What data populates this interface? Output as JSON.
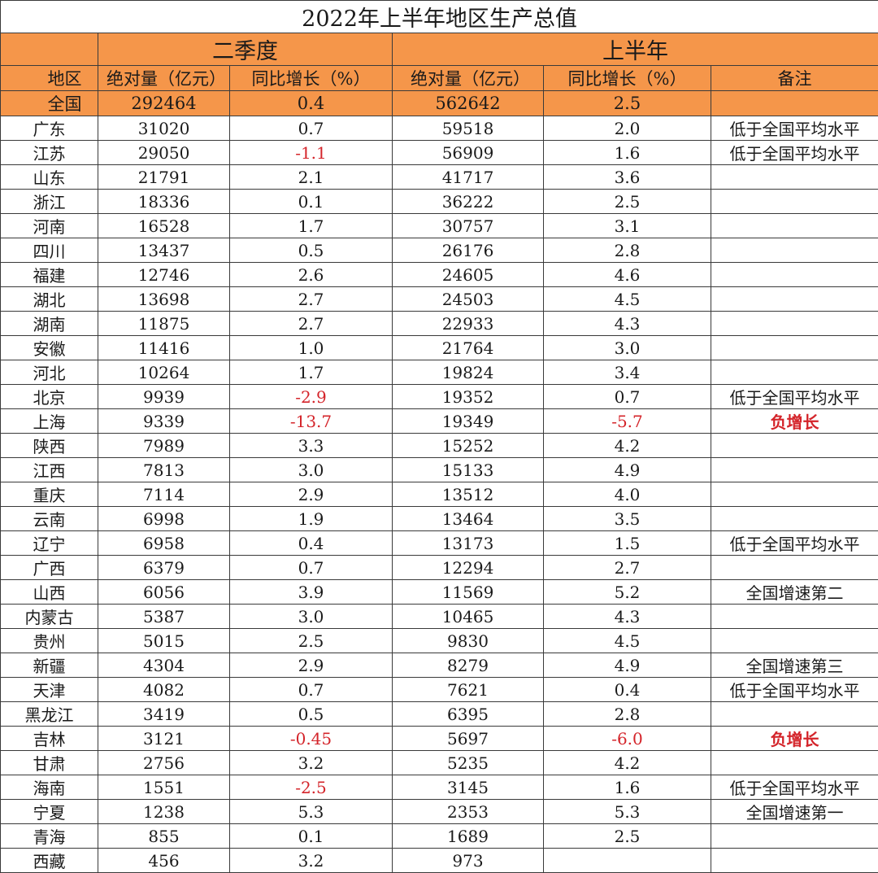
{
  "title": "2022年上半年地区生产总值",
  "groups": {
    "q2": "二季度",
    "h1": "上半年"
  },
  "headers": {
    "region": "地区",
    "q2_abs": "绝对量（亿元）",
    "q2_growth": "同比增长（%）",
    "h1_abs": "绝对量（亿元）",
    "h1_growth": "同比增长（%）",
    "note": "备注"
  },
  "national": {
    "region": "全国",
    "q2_abs": "292464",
    "q2_growth": "0.4",
    "h1_abs": "562642",
    "h1_growth": "2.5",
    "note": ""
  },
  "rows": [
    {
      "region": "广东",
      "q2_abs": "31020",
      "q2_growth": "0.7",
      "h1_abs": "59518",
      "h1_growth": "2.0",
      "note": "低于全国平均水平"
    },
    {
      "region": "江苏",
      "q2_abs": "29050",
      "q2_growth": "-1.1",
      "h1_abs": "56909",
      "h1_growth": "1.6",
      "note": "低于全国平均水平"
    },
    {
      "region": "山东",
      "q2_abs": "21791",
      "q2_growth": "2.1",
      "h1_abs": "41717",
      "h1_growth": "3.6",
      "note": ""
    },
    {
      "region": "浙江",
      "q2_abs": "18336",
      "q2_growth": "0.1",
      "h1_abs": "36222",
      "h1_growth": "2.5",
      "note": ""
    },
    {
      "region": "河南",
      "q2_abs": "16528",
      "q2_growth": "1.7",
      "h1_abs": "30757",
      "h1_growth": "3.1",
      "note": ""
    },
    {
      "region": "四川",
      "q2_abs": "13437",
      "q2_growth": "0.5",
      "h1_abs": "26176",
      "h1_growth": "2.8",
      "note": ""
    },
    {
      "region": "福建",
      "q2_abs": "12746",
      "q2_growth": "2.6",
      "h1_abs": "24605",
      "h1_growth": "4.6",
      "note": ""
    },
    {
      "region": "湖北",
      "q2_abs": "13698",
      "q2_growth": "2.7",
      "h1_abs": "24503",
      "h1_growth": "4.5",
      "note": ""
    },
    {
      "region": "湖南",
      "q2_abs": "11875",
      "q2_growth": "2.7",
      "h1_abs": "22933",
      "h1_growth": "4.3",
      "note": ""
    },
    {
      "region": "安徽",
      "q2_abs": "11416",
      "q2_growth": "1.0",
      "h1_abs": "21764",
      "h1_growth": "3.0",
      "note": ""
    },
    {
      "region": "河北",
      "q2_abs": "10264",
      "q2_growth": "1.7",
      "h1_abs": "19824",
      "h1_growth": "3.4",
      "note": ""
    },
    {
      "region": "北京",
      "q2_abs": "9939",
      "q2_growth": "-2.9",
      "h1_abs": "19352",
      "h1_growth": "0.7",
      "note": "低于全国平均水平"
    },
    {
      "region": "上海",
      "q2_abs": "9339",
      "q2_growth": "-13.7",
      "h1_abs": "19349",
      "h1_growth": "-5.7",
      "note": "负增长"
    },
    {
      "region": "陕西",
      "q2_abs": "7989",
      "q2_growth": "3.3",
      "h1_abs": "15252",
      "h1_growth": "4.2",
      "note": ""
    },
    {
      "region": "江西",
      "q2_abs": "7813",
      "q2_growth": "3.0",
      "h1_abs": "15133",
      "h1_growth": "4.9",
      "note": ""
    },
    {
      "region": "重庆",
      "q2_abs": "7114",
      "q2_growth": "2.9",
      "h1_abs": "13512",
      "h1_growth": "4.0",
      "note": ""
    },
    {
      "region": "云南",
      "q2_abs": "6998",
      "q2_growth": "1.9",
      "h1_abs": "13464",
      "h1_growth": "3.5",
      "note": ""
    },
    {
      "region": "辽宁",
      "q2_abs": "6958",
      "q2_growth": "0.4",
      "h1_abs": "13173",
      "h1_growth": "1.5",
      "note": "低于全国平均水平"
    },
    {
      "region": "广西",
      "q2_abs": "6379",
      "q2_growth": "0.7",
      "h1_abs": "12294",
      "h1_growth": "2.7",
      "note": ""
    },
    {
      "region": "山西",
      "q2_abs": "6056",
      "q2_growth": "3.9",
      "h1_abs": "11569",
      "h1_growth": "5.2",
      "note": "全国增速第二"
    },
    {
      "region": "内蒙古",
      "q2_abs": "5387",
      "q2_growth": "3.0",
      "h1_abs": "10465",
      "h1_growth": "4.3",
      "note": ""
    },
    {
      "region": "贵州",
      "q2_abs": "5015",
      "q2_growth": "2.5",
      "h1_abs": "9830",
      "h1_growth": "4.5",
      "note": ""
    },
    {
      "region": "新疆",
      "q2_abs": "4304",
      "q2_growth": "2.9",
      "h1_abs": "8279",
      "h1_growth": "4.9",
      "note": "全国增速第三"
    },
    {
      "region": "天津",
      "q2_abs": "4082",
      "q2_growth": "0.7",
      "h1_abs": "7621",
      "h1_growth": "0.4",
      "note": "低于全国平均水平"
    },
    {
      "region": "黑龙江",
      "q2_abs": "3419",
      "q2_growth": "0.5",
      "h1_abs": "6395",
      "h1_growth": "2.8",
      "note": ""
    },
    {
      "region": "吉林",
      "q2_abs": "3121",
      "q2_growth": "-0.45",
      "h1_abs": "5697",
      "h1_growth": "-6.0",
      "note": "负增长"
    },
    {
      "region": "甘肃",
      "q2_abs": "2756",
      "q2_growth": "3.2",
      "h1_abs": "5235",
      "h1_growth": "4.2",
      "note": ""
    },
    {
      "region": "海南",
      "q2_abs": "1551",
      "q2_growth": "-2.5",
      "h1_abs": "3145",
      "h1_growth": "1.6",
      "note": "低于全国平均水平"
    },
    {
      "region": "宁夏",
      "q2_abs": "1238",
      "q2_growth": "5.3",
      "h1_abs": "2353",
      "h1_growth": "5.3",
      "note": "全国增速第一"
    },
    {
      "region": "青海",
      "q2_abs": "855",
      "q2_growth": "0.1",
      "h1_abs": "1689",
      "h1_growth": "2.5",
      "note": ""
    },
    {
      "region": "西藏",
      "q2_abs": "456",
      "q2_growth": "3.2",
      "h1_abs": "973",
      "h1_growth": "",
      "note": ""
    }
  ],
  "colors": {
    "header_bg": "#f5964a",
    "negative": "#d4242a",
    "border": "#3a3a3a"
  }
}
